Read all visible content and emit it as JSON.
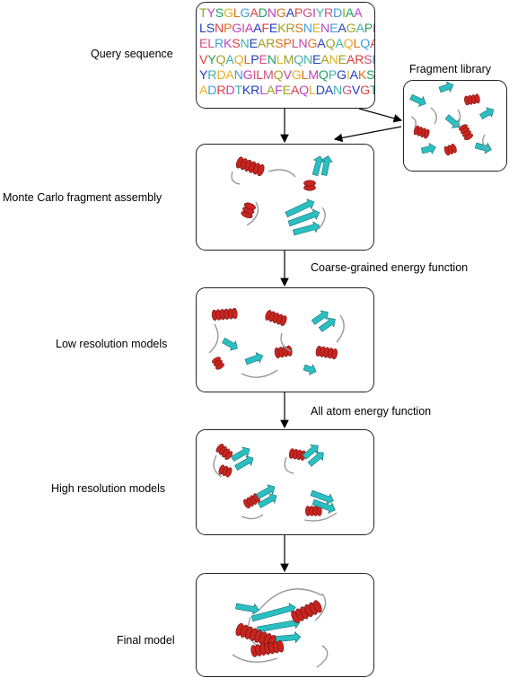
{
  "labels": {
    "query": "Query sequence",
    "library": "Fragment library",
    "assembly": "Monte Carlo fragment assembly",
    "coarse": "Coarse-grained energy function",
    "low": "Low resolution models",
    "allatom": "All atom energy function",
    "high": "High resolution models",
    "final": "Final model"
  },
  "sequence_lines": [
    "TYSGLGADNGAPGIYRDIAA",
    "LSNPGIAAFEKRSNENEAGAPP",
    "ELRKSNEARSPLNGAQAQLQAC",
    "VYQAQLPENLMQNEANEARSEN",
    "YRDANGILMQVGLMQPGIAKSN",
    "ADRDTKRLAFEAQLDANGVGT"
  ],
  "colors": {
    "helix": "#c8251f",
    "strand": "#2bbfc2",
    "loop": "#9a9a9a",
    "residue_palette": [
      "#e8b020",
      "#e04040",
      "#3aa0e0",
      "#20a060",
      "#c040c0",
      "#2040c0",
      "#e07020",
      "#40b0b0",
      "#a0a020",
      "#d05080"
    ]
  }
}
